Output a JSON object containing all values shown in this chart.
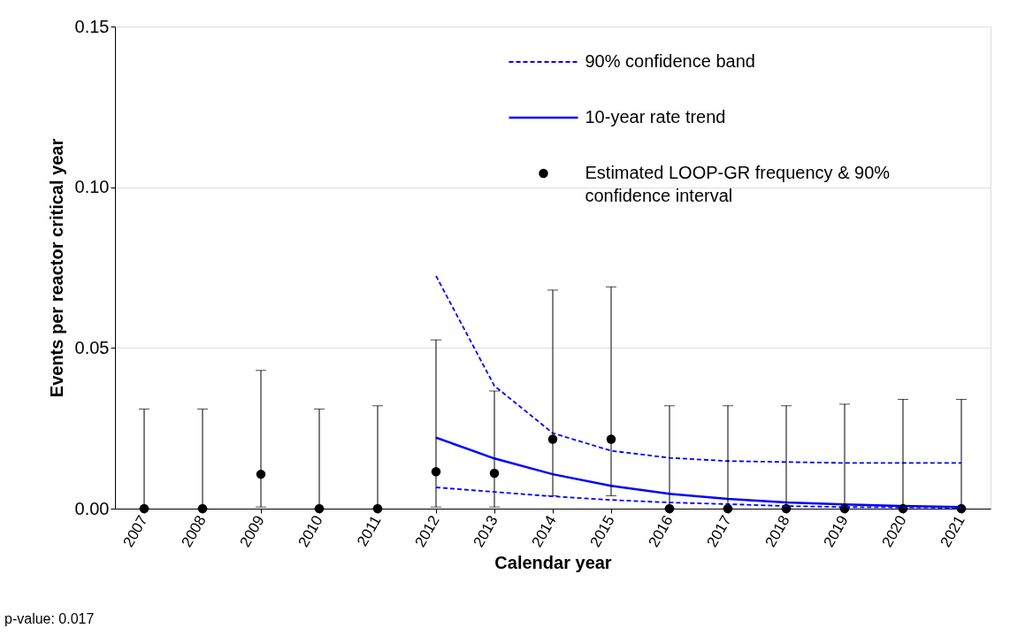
{
  "chart_data": {
    "type": "scatter",
    "xlabel": "Calendar year",
    "ylabel": "Events per reactor critical year",
    "categories": [
      "2007",
      "2008",
      "2009",
      "2010",
      "2011",
      "2012",
      "2013",
      "2014",
      "2015",
      "2016",
      "2017",
      "2018",
      "2019",
      "2020",
      "2021"
    ],
    "ylim": [
      0,
      0.15
    ],
    "yticks": [
      {
        "value": 0,
        "label": "0.00"
      },
      {
        "value": 0.05,
        "label": "0.05"
      },
      {
        "value": 0.1,
        "label": "0.10"
      },
      {
        "value": 0.15,
        "label": "0.15"
      }
    ],
    "grid": "y",
    "legend": "top right",
    "annotations": [
      "p-value: 0.017"
    ],
    "series": [
      {
        "name": "90% confidence band",
        "type": "line",
        "line_style": "dashed",
        "color": "#0000ff",
        "values": [
          null,
          null,
          null,
          null,
          null,
          0.0724,
          0.0382,
          0.0235,
          0.018,
          0.0158,
          0.0148,
          0.0145,
          0.0142,
          0.0142,
          0.0142
        ]
      },
      {
        "name": "10-year rate trend",
        "type": "line",
        "line_style": "solid",
        "color": "#0000ff",
        "values": [
          null,
          null,
          null,
          null,
          null,
          0.0221,
          0.0156,
          0.0107,
          0.0071,
          0.0046,
          0.003,
          0.0019,
          0.0013,
          0.0008,
          0.0005
        ]
      },
      {
        "name": "Estimated LOOP-GR frequency & 90% confidence interval",
        "marker": "circle",
        "color": "#000000",
        "values": [
          0,
          0,
          0.0107,
          0,
          0,
          0.0115,
          0.011,
          0.0216,
          0.0216,
          0,
          0,
          0,
          0,
          0,
          0
        ],
        "errors": [
          [
            0,
            0.031
          ],
          [
            0,
            0.031
          ],
          [
            0.0005,
            0.043
          ],
          [
            0,
            0.031
          ],
          [
            0,
            0.032
          ],
          [
            0.0005,
            0.0525
          ],
          [
            0.0005,
            0.0366
          ],
          [
            0.004,
            0.068
          ],
          [
            0.004,
            0.069
          ],
          [
            0,
            0.032
          ],
          [
            0,
            0.032
          ],
          [
            0,
            0.032
          ],
          [
            0,
            0.0325
          ],
          [
            0,
            0.034
          ],
          [
            0,
            0.034
          ]
        ]
      },
      {
        "type": "line",
        "line_style": "dashed",
        "color": "#0000ff",
        "values": [
          null,
          null,
          null,
          null,
          null,
          0.0066,
          0.0052,
          0.0038,
          0.0027,
          0.0019,
          0.0014,
          0.0008,
          0.0005,
          0.0004,
          0.0003
        ]
      }
    ]
  }
}
